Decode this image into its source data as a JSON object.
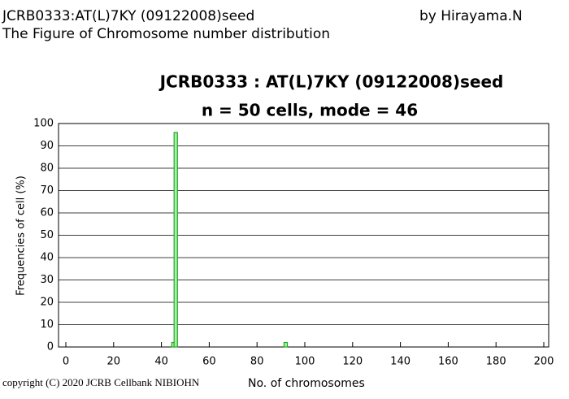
{
  "header": {
    "title": "JCRB0333:AT(L)7KY (09122008)seed",
    "author": "by Hirayama.N",
    "subtitle": "The Figure of Chromosome number distribution"
  },
  "footer": {
    "copyright": "copyright (C) 2020 JCRB Cellbank NIBIOHN"
  },
  "chart_data": {
    "type": "bar",
    "title": "JCRB0333 : AT(L)7KY (09122008)seed",
    "subtitle": "n = 50 cells, mode = 46",
    "x_label": "No. of chromosomes",
    "y_label": "Frequencies of cell (%)",
    "x": [
      45,
      46,
      92
    ],
    "values": [
      2,
      96,
      2
    ],
    "color": "#22aa22",
    "fill": "#aaeeaa",
    "xlim": [
      0,
      200
    ],
    "xticks": [
      0,
      20,
      40,
      60,
      80,
      100,
      120,
      140,
      160,
      180,
      200
    ],
    "ylim": [
      0,
      100
    ],
    "yticks": [
      0,
      10,
      20,
      30,
      40,
      50,
      60,
      70,
      80,
      90,
      100
    ],
    "grid": true
  }
}
